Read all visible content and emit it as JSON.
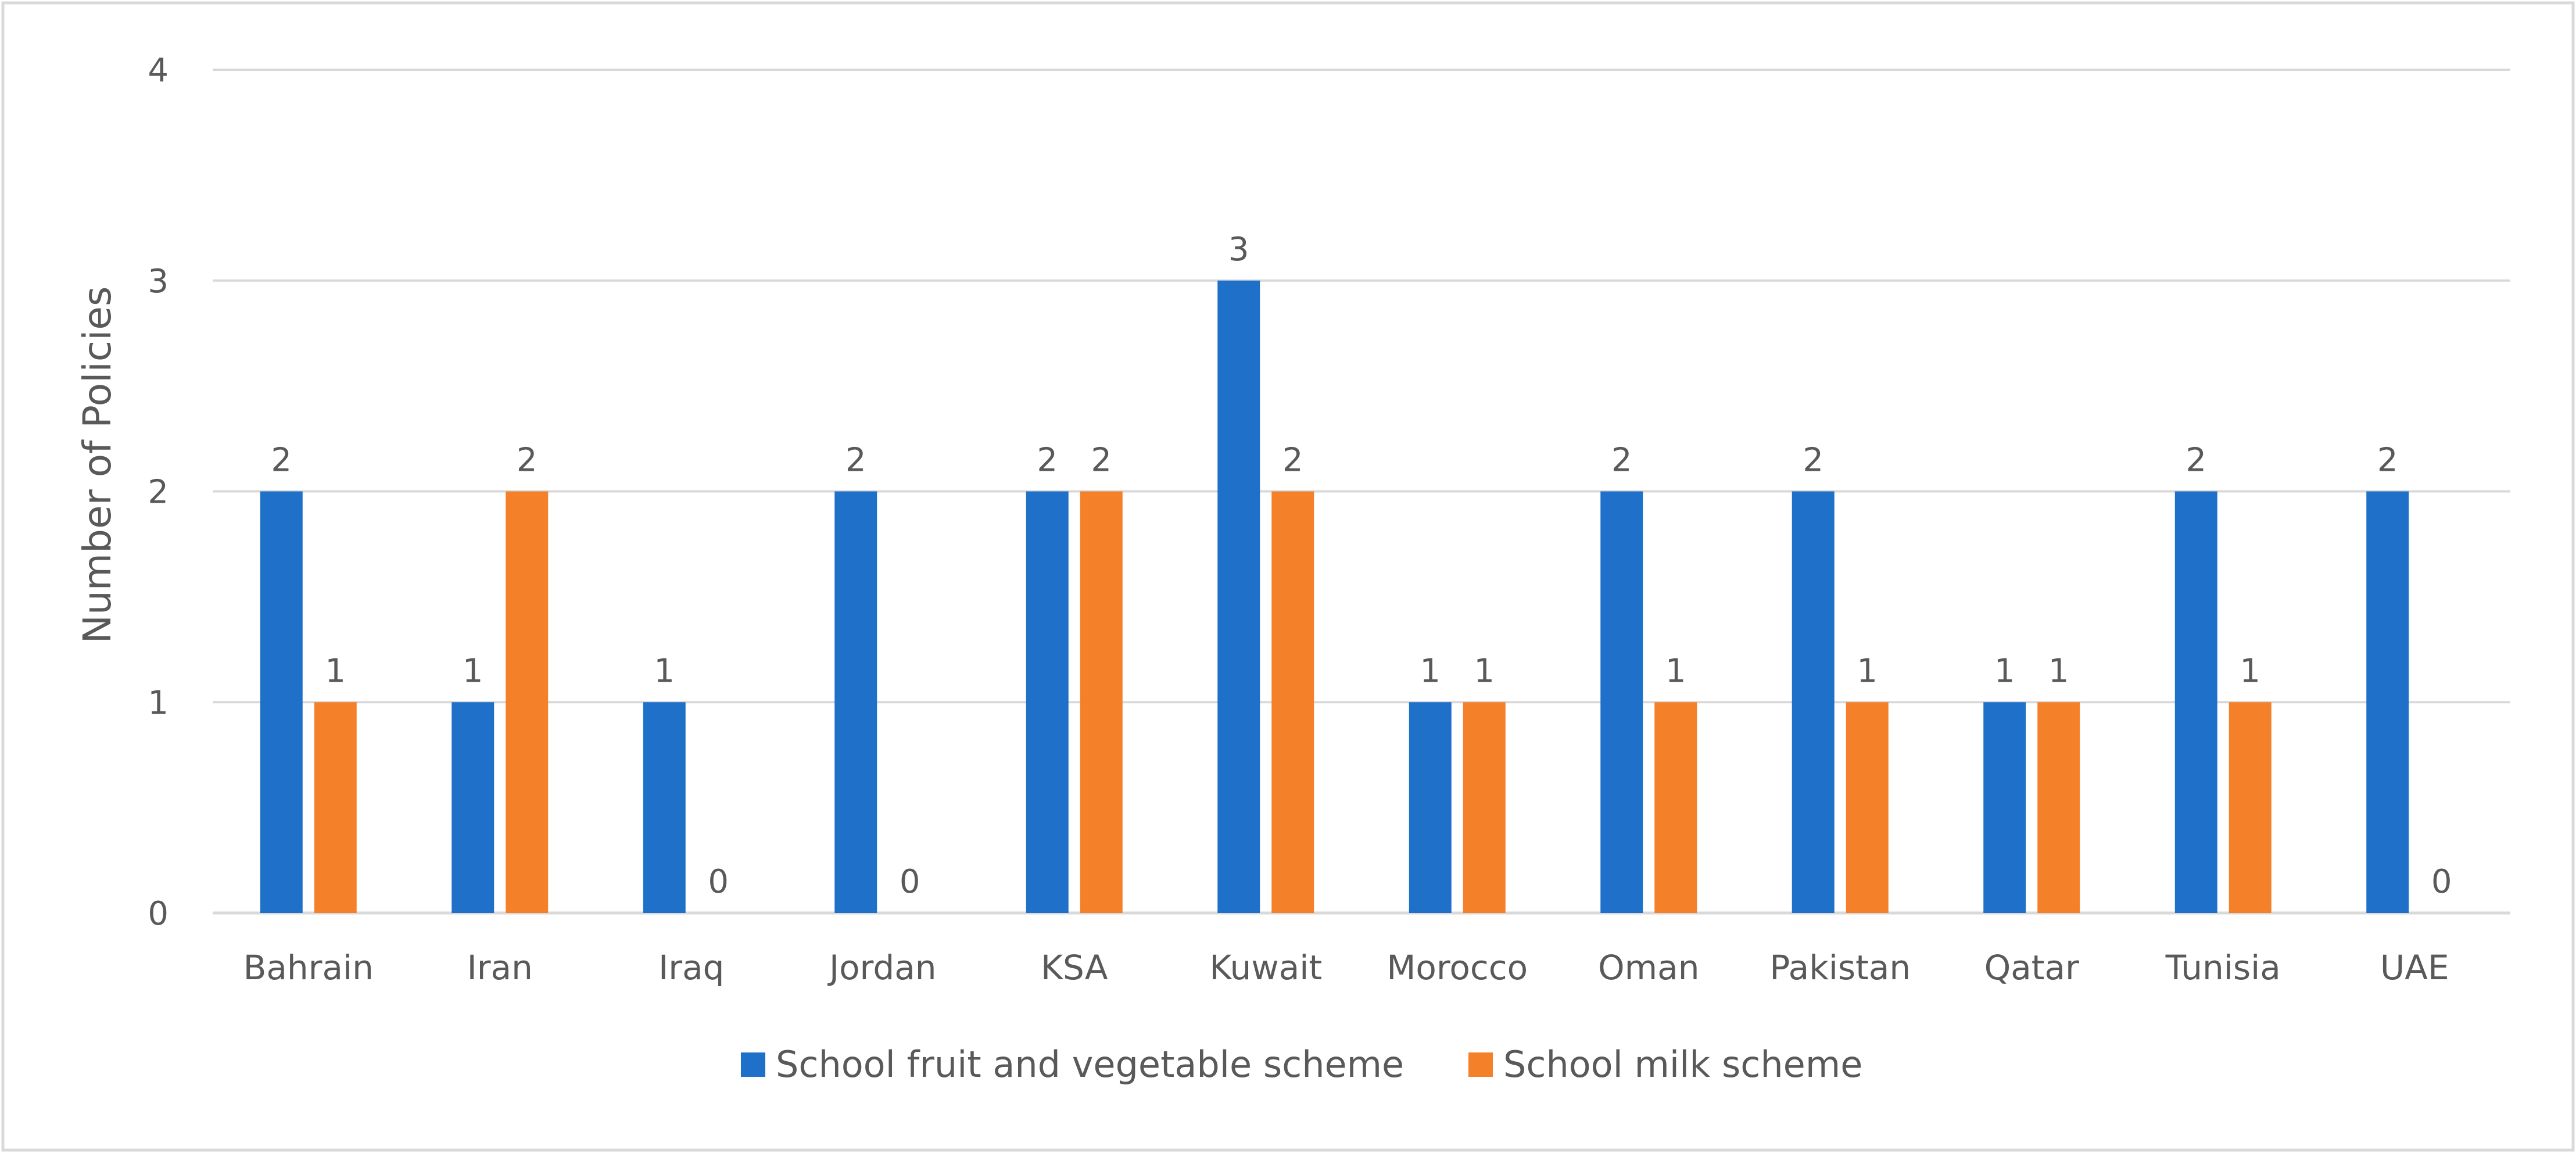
{
  "chart_data": {
    "type": "bar",
    "title": "",
    "xlabel": "",
    "ylabel": "Number of Policies",
    "ylim": [
      0,
      4
    ],
    "yticks": [
      0,
      1,
      2,
      3,
      4
    ],
    "grid": true,
    "legend_position": "bottom",
    "categories": [
      "Bahrain",
      "Iran",
      "Iraq",
      "Jordan",
      "KSA",
      "Kuwait",
      "Morocco",
      "Oman",
      "Pakistan",
      "Qatar",
      "Tunisia",
      "UAE"
    ],
    "series": [
      {
        "name": "School fruit and vegetable scheme",
        "color": "#1f70c8",
        "values": [
          2,
          1,
          1,
          2,
          2,
          3,
          1,
          2,
          2,
          1,
          2,
          2
        ],
        "labels": [
          "2",
          "1",
          "1",
          "2",
          "2",
          "3",
          "1",
          "2",
          "2",
          "1",
          "2",
          "2"
        ]
      },
      {
        "name": "School milk scheme",
        "color": "#f5802a",
        "values": [
          1,
          2,
          0,
          0,
          2,
          2,
          1,
          1,
          1,
          1,
          1,
          0
        ],
        "labels": [
          "1",
          "2",
          "0",
          "0",
          "2",
          "2",
          "1",
          "1",
          "1",
          "1",
          "1",
          "0"
        ]
      }
    ]
  }
}
